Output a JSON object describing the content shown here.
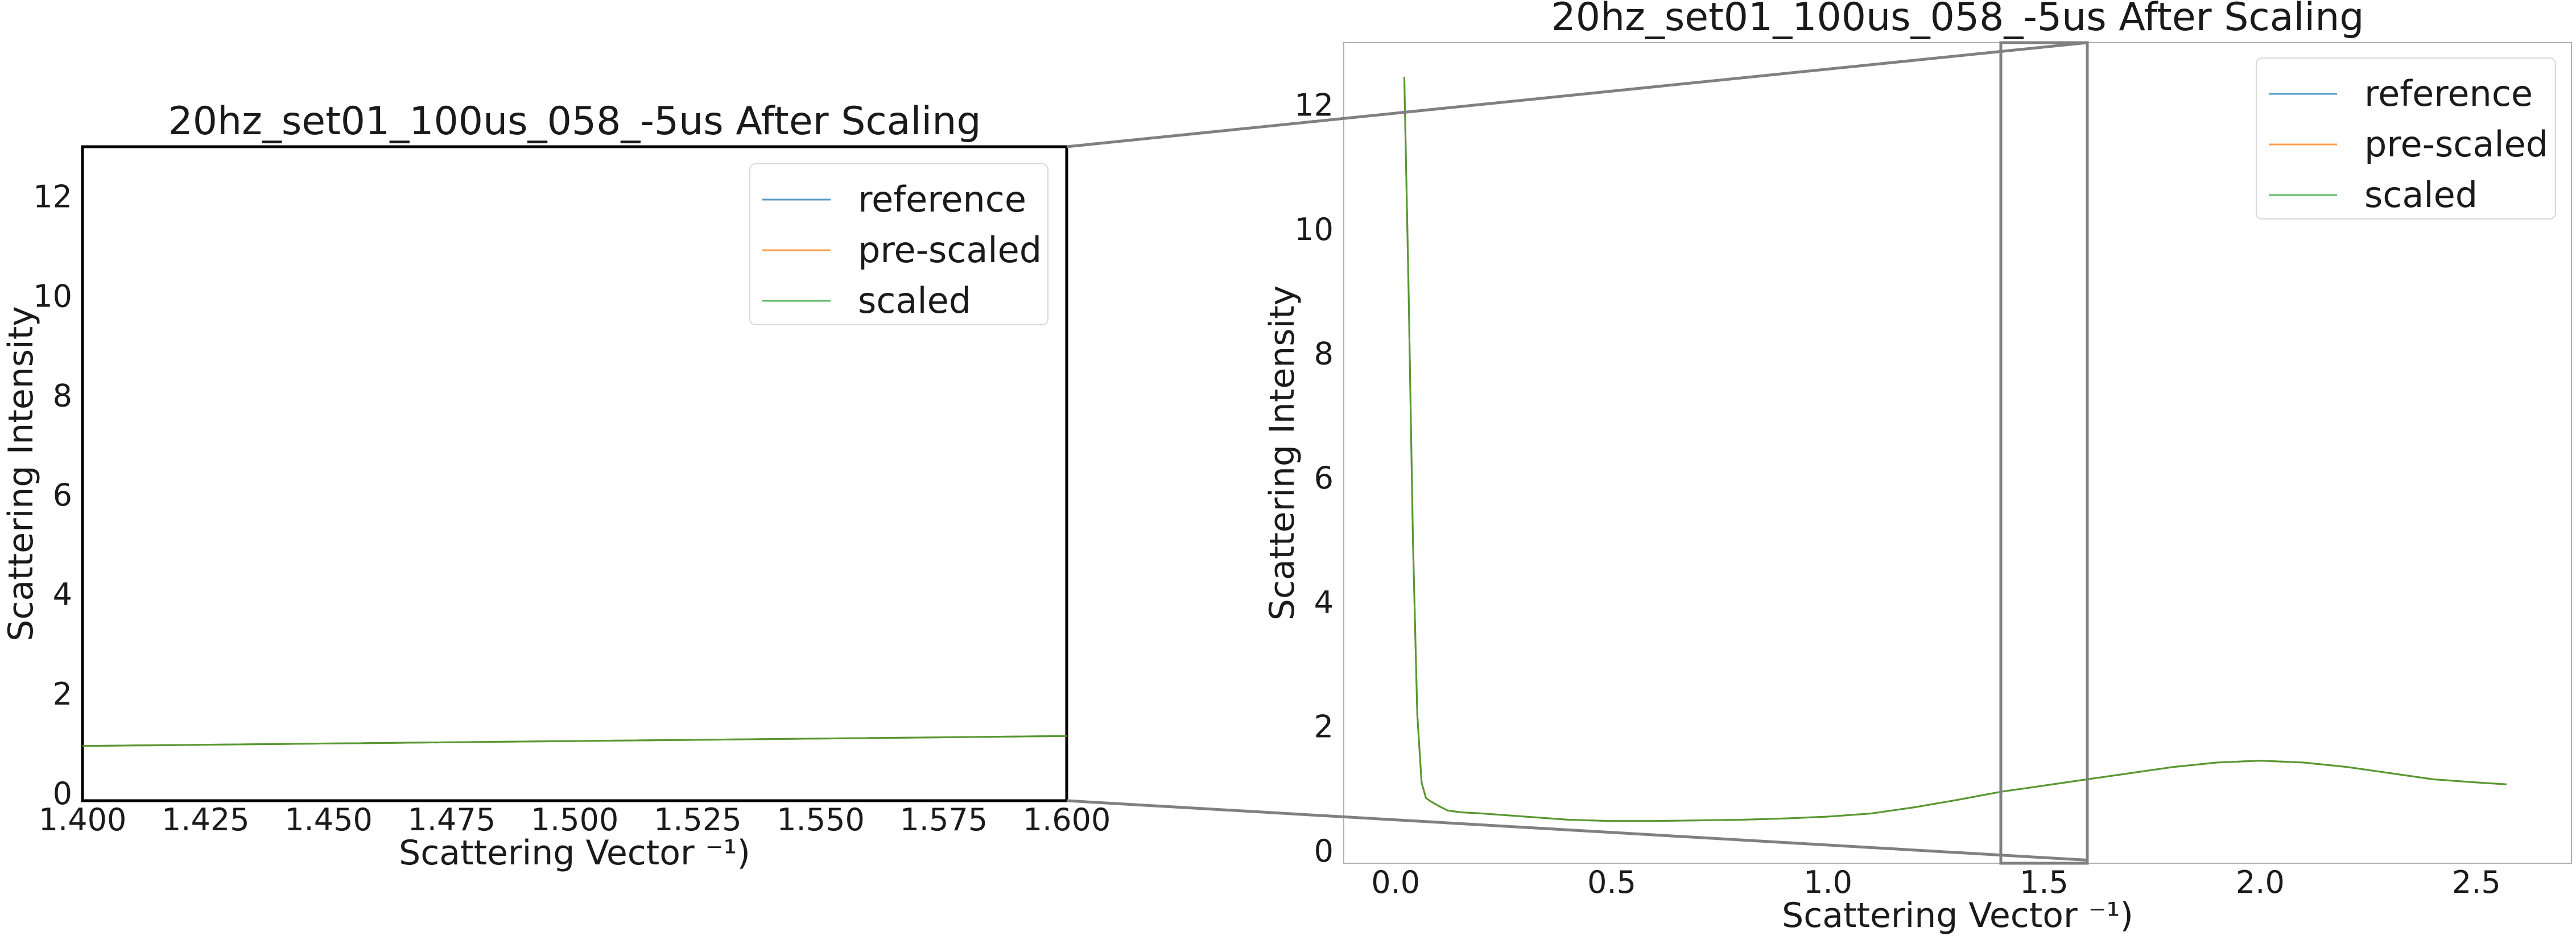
{
  "chart_data": [
    {
      "type": "line",
      "panel": "zoomed",
      "title": "20hz_set01_100us_058_-5us After Scaling",
      "xlabel": "Scattering Vector ⁻¹)",
      "ylabel": "Scattering Intensity",
      "xlim": [
        1.4,
        1.6
      ],
      "ylim": [
        -0.15,
        13.0
      ],
      "xticks": [
        "1.400",
        "1.425",
        "1.450",
        "1.475",
        "1.500",
        "1.525",
        "1.550",
        "1.575",
        "1.600"
      ],
      "yticks": [
        "0",
        "2",
        "4",
        "6",
        "8",
        "10",
        "12"
      ],
      "legend_position": "top-right",
      "series": [
        {
          "name": "reference",
          "color": "#1f77b4",
          "x": [
            1.4,
            1.45,
            1.5,
            1.55,
            1.6
          ],
          "y": [
            0.95,
            1.0,
            1.05,
            1.1,
            1.15
          ]
        },
        {
          "name": "pre-scaled",
          "color": "#ff7f0e",
          "x": [
            1.4,
            1.45,
            1.5,
            1.55,
            1.6
          ],
          "y": [
            0.95,
            1.0,
            1.05,
            1.1,
            1.15
          ]
        },
        {
          "name": "scaled",
          "color": "#2ca02c",
          "x": [
            1.4,
            1.45,
            1.5,
            1.55,
            1.6
          ],
          "y": [
            0.95,
            1.0,
            1.05,
            1.1,
            1.15
          ]
        }
      ]
    },
    {
      "type": "line",
      "panel": "overview",
      "title": "20hz_set01_100us_058_-5us After Scaling",
      "xlabel": "Scattering Vector ⁻¹)",
      "ylabel": "Scattering Intensity",
      "xlim": [
        -0.12,
        2.72
      ],
      "ylim": [
        -0.2,
        13.0
      ],
      "xticks": [
        "0.0",
        "0.5",
        "1.0",
        "1.5",
        "2.0",
        "2.5"
      ],
      "yticks": [
        "0",
        "2",
        "4",
        "6",
        "8",
        "10",
        "12"
      ],
      "zoom_region": {
        "x": [
          1.4,
          1.6
        ],
        "y": [
          -0.15,
          13.0
        ]
      },
      "legend_position": "top-right",
      "series": [
        {
          "name": "reference",
          "color": "#1f77b4",
          "x": [
            0.02,
            0.03,
            0.04,
            0.05,
            0.06,
            0.07,
            0.08,
            0.1,
            0.12,
            0.15,
            0.2,
            0.3,
            0.4,
            0.5,
            0.6,
            0.7,
            0.8,
            0.9,
            1.0,
            1.1,
            1.2,
            1.3,
            1.4,
            1.5,
            1.6,
            1.7,
            1.8,
            1.9,
            2.0,
            2.1,
            2.2,
            2.3,
            2.4,
            2.5,
            2.57
          ],
          "y": [
            12.45,
            9.0,
            5.0,
            2.2,
            1.1,
            0.85,
            0.8,
            0.72,
            0.65,
            0.62,
            0.6,
            0.55,
            0.5,
            0.48,
            0.48,
            0.49,
            0.5,
            0.52,
            0.55,
            0.6,
            0.7,
            0.82,
            0.95,
            1.05,
            1.15,
            1.25,
            1.35,
            1.42,
            1.45,
            1.42,
            1.35,
            1.25,
            1.15,
            1.1,
            1.07
          ]
        },
        {
          "name": "pre-scaled",
          "color": "#ff7f0e",
          "x": [
            0.02,
            0.03,
            0.04,
            0.05,
            0.06,
            0.07,
            0.08,
            0.1,
            0.12,
            0.15,
            0.2,
            0.3,
            0.4,
            0.5,
            0.6,
            0.7,
            0.8,
            0.9,
            1.0,
            1.1,
            1.2,
            1.3,
            1.4,
            1.5,
            1.6,
            1.7,
            1.8,
            1.9,
            2.0,
            2.1,
            2.2,
            2.3,
            2.4,
            2.5,
            2.57
          ],
          "y": [
            12.45,
            9.0,
            5.0,
            2.2,
            1.1,
            0.85,
            0.8,
            0.72,
            0.65,
            0.62,
            0.6,
            0.55,
            0.5,
            0.48,
            0.48,
            0.49,
            0.5,
            0.52,
            0.55,
            0.6,
            0.7,
            0.82,
            0.95,
            1.05,
            1.15,
            1.25,
            1.35,
            1.42,
            1.45,
            1.42,
            1.35,
            1.25,
            1.15,
            1.1,
            1.07
          ]
        },
        {
          "name": "scaled",
          "color": "#2ca02c",
          "x": [
            0.02,
            0.03,
            0.04,
            0.05,
            0.06,
            0.07,
            0.08,
            0.1,
            0.12,
            0.15,
            0.2,
            0.3,
            0.4,
            0.5,
            0.6,
            0.7,
            0.8,
            0.9,
            1.0,
            1.1,
            1.2,
            1.3,
            1.4,
            1.5,
            1.6,
            1.7,
            1.8,
            1.9,
            2.0,
            2.1,
            2.2,
            2.3,
            2.4,
            2.5,
            2.57
          ],
          "y": [
            12.45,
            9.0,
            5.0,
            2.2,
            1.1,
            0.85,
            0.8,
            0.72,
            0.65,
            0.62,
            0.6,
            0.55,
            0.5,
            0.48,
            0.48,
            0.49,
            0.5,
            0.52,
            0.55,
            0.6,
            0.7,
            0.82,
            0.95,
            1.05,
            1.15,
            1.25,
            1.35,
            1.42,
            1.45,
            1.42,
            1.35,
            1.25,
            1.15,
            1.1,
            1.07
          ]
        }
      ]
    }
  ]
}
